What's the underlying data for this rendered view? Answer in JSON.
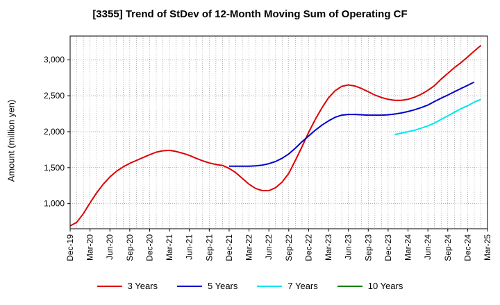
{
  "chart_data": {
    "type": "line",
    "title": "[3355]  Trend of StDev of 12-Month Moving Sum of Operating CF",
    "ylabel": "Amount (million yen)",
    "xlabel": "",
    "ylim": [
      650,
      3330
    ],
    "yticks": [
      1000,
      1500,
      2000,
      2500,
      3000
    ],
    "ytick_labels": [
      "1,000",
      "1,500",
      "2,000",
      "2,500",
      "3,000"
    ],
    "xtick_labels": [
      "Dec-19",
      "Mar-20",
      "Jun-20",
      "Sep-20",
      "Dec-20",
      "Mar-21",
      "Jun-21",
      "Sep-21",
      "Dec-21",
      "Mar-22",
      "Jun-22",
      "Sep-22",
      "Dec-22",
      "Mar-23",
      "Jun-23",
      "Sep-23",
      "Dec-23",
      "Mar-24",
      "Jun-24",
      "Sep-24",
      "Dec-24",
      "Mar-25"
    ],
    "x_start": "Dec-19",
    "x_end": "Mar-25",
    "grid": true,
    "legend_position": "bottom",
    "series": [
      {
        "name": "3 Years",
        "color": "#dd0000",
        "start_index": 0,
        "values": [
          690,
          740,
          860,
          1010,
          1150,
          1270,
          1370,
          1450,
          1510,
          1560,
          1600,
          1640,
          1680,
          1715,
          1735,
          1740,
          1725,
          1700,
          1670,
          1630,
          1595,
          1565,
          1545,
          1530,
          1490,
          1430,
          1350,
          1270,
          1210,
          1180,
          1180,
          1220,
          1300,
          1420,
          1600,
          1790,
          1990,
          2170,
          2330,
          2470,
          2570,
          2630,
          2650,
          2635,
          2600,
          2555,
          2510,
          2475,
          2450,
          2435,
          2435,
          2450,
          2480,
          2520,
          2575,
          2640,
          2730,
          2810,
          2890,
          2960,
          3040,
          3120,
          3200
        ]
      },
      {
        "name": "5 Years",
        "color": "#0000cc",
        "start_index": 24,
        "values": [
          1520,
          1520,
          1520,
          1520,
          1525,
          1535,
          1555,
          1585,
          1630,
          1690,
          1770,
          1860,
          1940,
          2020,
          2090,
          2150,
          2200,
          2230,
          2240,
          2240,
          2235,
          2230,
          2230,
          2230,
          2235,
          2245,
          2260,
          2280,
          2305,
          2335,
          2370,
          2420,
          2465,
          2510,
          2555,
          2600,
          2645,
          2690
        ]
      },
      {
        "name": "7 Years",
        "color": "#00e5ee",
        "start_index": 49,
        "values": [
          1960,
          1980,
          2000,
          2020,
          2050,
          2080,
          2120,
          2170,
          2220,
          2270,
          2320,
          2360,
          2410,
          2450
        ]
      },
      {
        "name": "10 Years",
        "color": "#008000",
        "start_index": 0,
        "values": []
      }
    ]
  }
}
